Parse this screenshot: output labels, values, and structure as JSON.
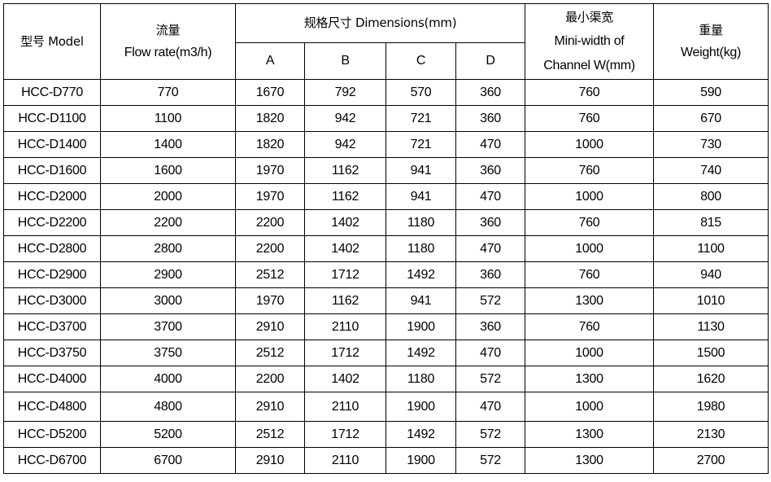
{
  "headers": {
    "model": "型号 Model",
    "flow_cn": "流量",
    "flow_en": "Flow rate(m3/h)",
    "dimensions": "规格尺寸 Dimensions(mm)",
    "dim_a": "A",
    "dim_b": "B",
    "dim_c": "C",
    "dim_d": "D",
    "channel_cn": "最小渠宽",
    "channel_en1": "Mini-width of",
    "channel_en2": "Channel W(mm)",
    "weight_cn": "重量",
    "weight_en": "Weight(kg)"
  },
  "rows": [
    [
      "HCC-D770",
      "770",
      "1670",
      "792",
      "570",
      "360",
      "760",
      "590"
    ],
    [
      "HCC-D1100",
      "1100",
      "1820",
      "942",
      "721",
      "360",
      "760",
      "670"
    ],
    [
      "HCC-D1400",
      "1400",
      "1820",
      "942",
      "721",
      "470",
      "1000",
      "730"
    ],
    [
      "HCC-D1600",
      "1600",
      "1970",
      "1162",
      "941",
      "360",
      "760",
      "740"
    ],
    [
      "HCC-D2000",
      "2000",
      "1970",
      "1162",
      "941",
      "470",
      "1000",
      "800"
    ],
    [
      "HCC-D2200",
      "2200",
      "2200",
      "1402",
      "1180",
      "360",
      "760",
      "815"
    ],
    [
      "HCC-D2800",
      "2800",
      "2200",
      "1402",
      "1180",
      "470",
      "1000",
      "1100"
    ],
    [
      "HCC-D2900",
      "2900",
      "2512",
      "1712",
      "1492",
      "360",
      "760",
      "940"
    ],
    [
      "HCC-D3000",
      "3000",
      "1970",
      "1162",
      "941",
      "572",
      "1300",
      "1010"
    ],
    [
      "HCC-D3700",
      "3700",
      "2910",
      "2110",
      "1900",
      "360",
      "760",
      "1130"
    ],
    [
      "HCC-D3750",
      "3750",
      "2512",
      "1712",
      "1492",
      "470",
      "1000",
      "1500"
    ],
    [
      "HCC-D4000",
      "4000",
      "2200",
      "1402",
      "1180",
      "572",
      "1300",
      "1620"
    ],
    [
      "HCC-D4800",
      "4800",
      "2910",
      "2110",
      "1900",
      "470",
      "1000",
      "1980"
    ],
    [
      "HCC-D5200",
      "5200",
      "2512",
      "1712",
      "1492",
      "572",
      "1300",
      "2130"
    ],
    [
      "HCC-D6700",
      "6700",
      "2910",
      "2110",
      "1900",
      "572",
      "1300",
      "2700"
    ]
  ]
}
